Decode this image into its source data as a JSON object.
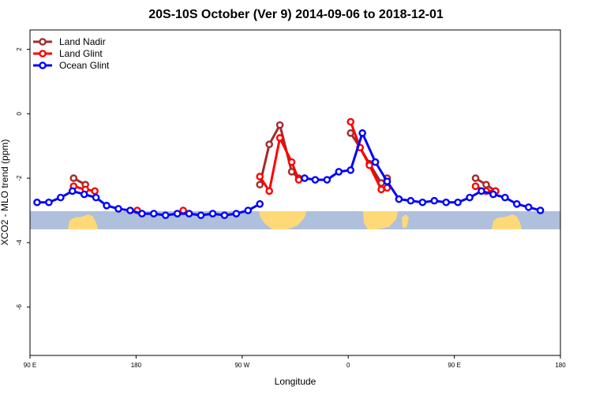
{
  "chart_data": {
    "type": "line",
    "title": "20S-10S October (Ver 9)   2014-09-06 to 2018-12-01",
    "xlabel": "Longitude",
    "ylabel": "XCO2 - MLO trend (ppm)",
    "xlim": [
      90,
      540
    ],
    "ylim": [
      -7.5,
      2.6
    ],
    "grid": false,
    "legend_position": "top-left",
    "x_ticks": [
      {
        "value": 90,
        "label": "90 E"
      },
      {
        "value": 180,
        "label": "180"
      },
      {
        "value": 270,
        "label": "90 W"
      },
      {
        "value": 360,
        "label": "0"
      },
      {
        "value": 450,
        "label": "90 E"
      },
      {
        "value": 540,
        "label": "180"
      }
    ],
    "y_ticks": [
      {
        "value": 2,
        "label": "2"
      },
      {
        "value": 0,
        "label": "0"
      },
      {
        "value": -2,
        "label": "-2"
      },
      {
        "value": -4,
        "label": "-4"
      },
      {
        "value": -6,
        "label": "-6"
      }
    ],
    "series": [
      {
        "name": "Land Nadir",
        "color": "#a52a2a",
        "segments": [
          [
            [
              127,
              -2.0
            ],
            [
              137,
              -2.2
            ]
          ],
          [
            [
              285,
              -2.2
            ],
            [
              293,
              -0.95
            ],
            [
              302,
              -0.35
            ],
            [
              312,
              -1.8
            ],
            [
              318,
              -2.0
            ]
          ],
          [
            [
              362,
              -0.6
            ],
            [
              370,
              -1.05
            ],
            [
              378,
              -1.55
            ],
            [
              388,
              -2.15
            ],
            [
              393,
              -2.0
            ]
          ],
          [
            [
              468,
              -2.0
            ],
            [
              477,
              -2.2
            ],
            [
              485,
              -2.4
            ]
          ]
        ]
      },
      {
        "name": "Land Glint",
        "color": "#ff0000",
        "segments": [
          [
            [
              127,
              -2.25
            ],
            [
              137,
              -2.35
            ],
            [
              145,
              -2.4
            ]
          ],
          [
            [
              181,
              -3.0
            ]
          ],
          [
            [
              220,
              -3.0
            ]
          ],
          [
            [
              285,
              -1.95
            ],
            [
              293,
              -2.4
            ],
            [
              302,
              -0.75
            ],
            [
              312,
              -1.5
            ],
            [
              318,
              -2.05
            ]
          ],
          [
            [
              362,
              -0.25
            ],
            [
              370,
              -1.05
            ],
            [
              378,
              -1.6
            ],
            [
              388,
              -2.35
            ],
            [
              393,
              -2.3
            ]
          ],
          [
            [
              468,
              -2.25
            ],
            [
              477,
              -2.4
            ],
            [
              485,
              -2.4
            ]
          ]
        ]
      },
      {
        "name": "Ocean Glint",
        "color": "#0000ff",
        "segments": [
          [
            [
              96,
              -2.75
            ],
            [
              106,
              -2.75
            ],
            [
              116,
              -2.6
            ],
            [
              126,
              -2.4
            ],
            [
              136,
              -2.5
            ],
            [
              146,
              -2.6
            ],
            [
              155,
              -2.85
            ],
            [
              165,
              -2.95
            ],
            [
              175,
              -3.0
            ],
            [
              185,
              -3.1
            ],
            [
              195,
              -3.1
            ],
            [
              205,
              -3.15
            ],
            [
              215,
              -3.1
            ],
            [
              225,
              -3.1
            ],
            [
              235,
              -3.15
            ],
            [
              245,
              -3.1
            ],
            [
              255,
              -3.15
            ],
            [
              265,
              -3.1
            ],
            [
              275,
              -3.0
            ],
            [
              285,
              -2.8
            ]
          ],
          [
            [
              323,
              -2.0
            ],
            [
              332,
              -2.05
            ],
            [
              342,
              -2.05
            ],
            [
              352,
              -1.8
            ],
            [
              362,
              -1.75
            ],
            [
              372,
              -0.6
            ],
            [
              383,
              -1.5
            ],
            [
              393,
              -2.1
            ],
            [
              403,
              -2.65
            ],
            [
              413,
              -2.7
            ],
            [
              423,
              -2.75
            ],
            [
              433,
              -2.7
            ],
            [
              443,
              -2.75
            ],
            [
              453,
              -2.75
            ],
            [
              463,
              -2.6
            ],
            [
              473,
              -2.4
            ],
            [
              483,
              -2.5
            ],
            [
              493,
              -2.6
            ],
            [
              503,
              -2.8
            ],
            [
              513,
              -2.9
            ],
            [
              523,
              -3.0
            ]
          ]
        ]
      }
    ]
  }
}
